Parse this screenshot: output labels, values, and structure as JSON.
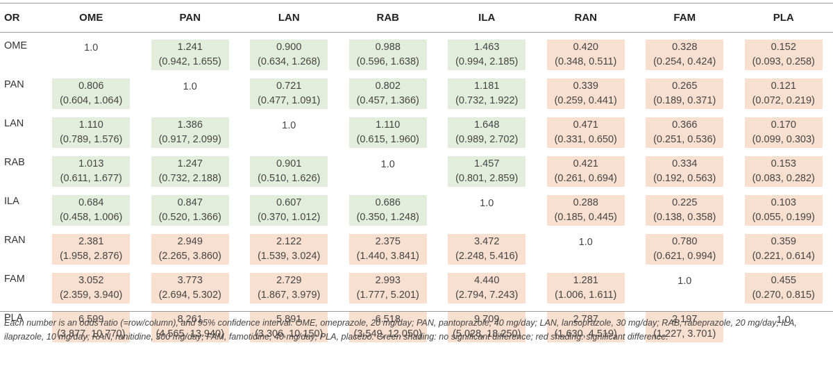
{
  "table": {
    "corner_label": "OR",
    "columns": [
      "OME",
      "PAN",
      "LAN",
      "RAB",
      "ILA",
      "RAN",
      "FAM",
      "PLA"
    ],
    "rows": [
      {
        "label": "OME",
        "cells": [
          {
            "or": "1.0",
            "ci": "",
            "shade": "none"
          },
          {
            "or": "1.241",
            "ci": "(0.942, 1.655)",
            "shade": "green"
          },
          {
            "or": "0.900",
            "ci": "(0.634, 1.268)",
            "shade": "green"
          },
          {
            "or": "0.988",
            "ci": "(0.596, 1.638)",
            "shade": "green"
          },
          {
            "or": "1.463",
            "ci": "(0.994, 2.185)",
            "shade": "green"
          },
          {
            "or": "0.420",
            "ci": "(0.348, 0.511)",
            "shade": "red"
          },
          {
            "or": "0.328",
            "ci": "(0.254, 0.424)",
            "shade": "red"
          },
          {
            "or": "0.152",
            "ci": "(0.093, 0.258)",
            "shade": "red"
          }
        ]
      },
      {
        "label": "PAN",
        "cells": [
          {
            "or": "0.806",
            "ci": "(0.604, 1.064)",
            "shade": "green"
          },
          {
            "or": "1.0",
            "ci": "",
            "shade": "none"
          },
          {
            "or": "0.721",
            "ci": "(0.477, 1.091)",
            "shade": "green"
          },
          {
            "or": "0.802",
            "ci": "(0.457, 1.366)",
            "shade": "green"
          },
          {
            "or": "1.181",
            "ci": "(0.732, 1.922)",
            "shade": "green"
          },
          {
            "or": "0.339",
            "ci": "(0.259, 0.441)",
            "shade": "red"
          },
          {
            "or": "0.265",
            "ci": "(0.189, 0.371)",
            "shade": "red"
          },
          {
            "or": "0.121",
            "ci": "(0.072, 0.219)",
            "shade": "red"
          }
        ]
      },
      {
        "label": "LAN",
        "cells": [
          {
            "or": "1.110",
            "ci": "(0.789, 1.576)",
            "shade": "green"
          },
          {
            "or": "1.386",
            "ci": "(0.917, 2.099)",
            "shade": "green"
          },
          {
            "or": "1.0",
            "ci": "",
            "shade": "none"
          },
          {
            "or": "1.110",
            "ci": "(0.615, 1.960)",
            "shade": "green"
          },
          {
            "or": "1.648",
            "ci": "(0.989, 2.702)",
            "shade": "green"
          },
          {
            "or": "0.471",
            "ci": "(0.331, 0.650)",
            "shade": "red"
          },
          {
            "or": "0.366",
            "ci": "(0.251, 0.536)",
            "shade": "red"
          },
          {
            "or": "0.170",
            "ci": "(0.099, 0.303)",
            "shade": "red"
          }
        ]
      },
      {
        "label": "RAB",
        "cells": [
          {
            "or": "1.013",
            "ci": "(0.611, 1.677)",
            "shade": "green"
          },
          {
            "or": "1.247",
            "ci": "(0.732, 2.188)",
            "shade": "green"
          },
          {
            "or": "0.901",
            "ci": "(0.510, 1.626)",
            "shade": "green"
          },
          {
            "or": "1.0",
            "ci": "",
            "shade": "none"
          },
          {
            "or": "1.457",
            "ci": "(0.801, 2.859)",
            "shade": "green"
          },
          {
            "or": "0.421",
            "ci": "(0.261, 0.694)",
            "shade": "red"
          },
          {
            "or": "0.334",
            "ci": "(0.192, 0.563)",
            "shade": "red"
          },
          {
            "or": "0.153",
            "ci": "(0.083, 0.282)",
            "shade": "red"
          }
        ]
      },
      {
        "label": "ILA",
        "cells": [
          {
            "or": "0.684",
            "ci": "(0.458, 1.006)",
            "shade": "green"
          },
          {
            "or": "0.847",
            "ci": "(0.520, 1.366)",
            "shade": "green"
          },
          {
            "or": "0.607",
            "ci": "(0.370, 1.012)",
            "shade": "green"
          },
          {
            "or": "0.686",
            "ci": "(0.350, 1.248)",
            "shade": "green"
          },
          {
            "or": "1.0",
            "ci": "",
            "shade": "none"
          },
          {
            "or": "0.288",
            "ci": "(0.185, 0.445)",
            "shade": "red"
          },
          {
            "or": "0.225",
            "ci": "(0.138, 0.358)",
            "shade": "red"
          },
          {
            "or": "0.103",
            "ci": "(0.055, 0.199)",
            "shade": "red"
          }
        ]
      },
      {
        "label": "RAN",
        "cells": [
          {
            "or": "2.381",
            "ci": "(1.958, 2.876)",
            "shade": "red"
          },
          {
            "or": "2.949",
            "ci": "(2.265, 3.860)",
            "shade": "red"
          },
          {
            "or": "2.122",
            "ci": "(1.539, 3.024)",
            "shade": "red"
          },
          {
            "or": "2.375",
            "ci": "(1.440, 3.841)",
            "shade": "red"
          },
          {
            "or": "3.472",
            "ci": "(2.248, 5.416)",
            "shade": "red"
          },
          {
            "or": "1.0",
            "ci": "",
            "shade": "none"
          },
          {
            "or": "0.780",
            "ci": "(0.621, 0.994)",
            "shade": "red"
          },
          {
            "or": "0.359",
            "ci": "(0.221, 0.614)",
            "shade": "red"
          }
        ]
      },
      {
        "label": "FAM",
        "cells": [
          {
            "or": "3.052",
            "ci": "(2.359, 3.940)",
            "shade": "red"
          },
          {
            "or": "3.773",
            "ci": "(2.694, 5.302)",
            "shade": "red"
          },
          {
            "or": "2.729",
            "ci": "(1.867, 3.979)",
            "shade": "red"
          },
          {
            "or": "2.993",
            "ci": "(1.777, 5.201)",
            "shade": "red"
          },
          {
            "or": "4.440",
            "ci": "(2.794, 7.243)",
            "shade": "red"
          },
          {
            "or": "1.281",
            "ci": "(1.006, 1.611)",
            "shade": "red"
          },
          {
            "or": "1.0",
            "ci": "",
            "shade": "none"
          },
          {
            "or": "0.455",
            "ci": "(0.270, 0.815)",
            "shade": "red"
          }
        ]
      },
      {
        "label": "PLA",
        "cells": [
          {
            "or": "6.599",
            "ci": "(3.877, 10.770)",
            "shade": "red"
          },
          {
            "or": "8.261",
            "ci": "(4.565, 13.940)",
            "shade": "red"
          },
          {
            "or": "5.891",
            "ci": "(3.306, 10.150)",
            "shade": "red"
          },
          {
            "or": "6.518",
            "ci": "(3.549, 12.050)",
            "shade": "red"
          },
          {
            "or": "9.709",
            "ci": "(5.028, 18.250)",
            "shade": "red"
          },
          {
            "or": "2.787",
            "ci": "(1.630, 4.519)",
            "shade": "red"
          },
          {
            "or": "2.197",
            "ci": "(1.227, 3.701)",
            "shade": "red"
          },
          {
            "or": "1.0",
            "ci": "",
            "shade": "none"
          }
        ]
      }
    ]
  },
  "footnote": "Each number is an odds ratio (=row/column), and 95% confidence interval. OME, omeprazole, 20 mg/day; PAN, pantoprazole, 40 mg/day; LAN, lansoprazole, 30 mg/day; RAB, rabeprazole, 20 mg/day; ILA, ilaprazole, 10 mg/day; RAN, ranitidine, 300 mg/day; FAM, famotidine, 40 mg/day; PLA, placebo. Green shading: no significant difference; red shading: significant difference.",
  "colors": {
    "green_shade": "#e2eedb",
    "red_shade": "#f8dfd0",
    "rule": "#9a9a9a",
    "text": "#444444"
  }
}
